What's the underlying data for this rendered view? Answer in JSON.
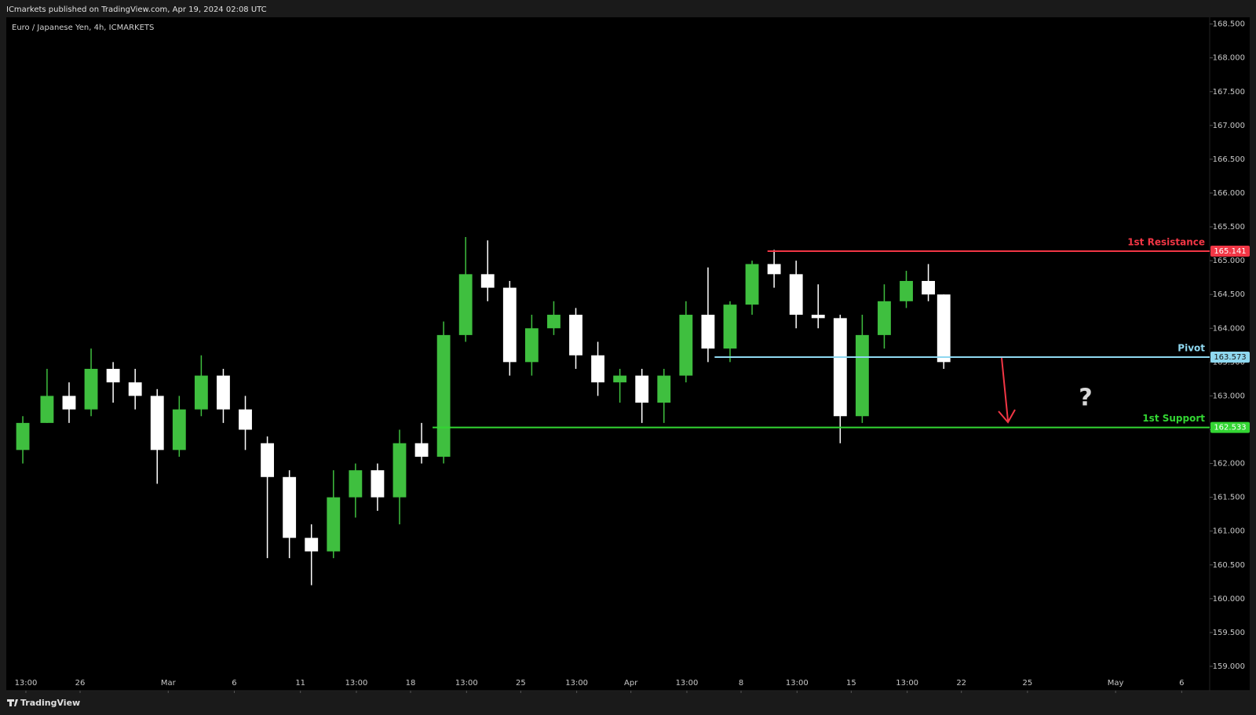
{
  "header": {
    "publisher": "ICmarkets published on TradingView.com, Apr 19, 2024 02:08 UTC",
    "symbol": "Euro / Japanese Yen, 4h, ICMARKETS",
    "footer": "TradingView"
  },
  "chart_data": {
    "type": "candlestick",
    "x": [
      -2.6,
      -1.5,
      -0.5,
      0.5,
      1.5,
      2.5,
      3.5,
      4.5,
      5.5,
      6.5,
      7.5,
      8.5,
      9.5,
      10.5,
      11.5,
      12.5,
      13.5,
      14.5,
      15.5,
      16.5,
      17.5,
      18.5,
      19.5,
      20.5,
      21.5,
      22.5,
      23.5,
      24.5,
      25.5,
      26.5,
      27.5,
      28.5,
      29.5,
      30.5,
      31.5,
      32.5,
      33.5,
      34.5,
      35.5,
      36.5,
      37.5,
      38.5,
      39.2
    ],
    "open": [
      162.2,
      162.6,
      163.0,
      162.8,
      163.4,
      163.2,
      163.0,
      162.2,
      162.8,
      163.3,
      162.8,
      162.3,
      161.8,
      160.9,
      160.7,
      161.5,
      161.9,
      161.5,
      162.3,
      162.1,
      163.9,
      164.8,
      164.6,
      163.5,
      164.0,
      164.2,
      163.6,
      163.2,
      163.3,
      162.9,
      163.3,
      164.2,
      163.7,
      164.35,
      164.95,
      164.8,
      164.2,
      164.15,
      162.7,
      163.9,
      164.4,
      164.7,
      164.5
    ],
    "high": [
      162.7,
      163.4,
      163.2,
      163.7,
      163.5,
      163.4,
      163.1,
      163.0,
      163.6,
      163.4,
      163.0,
      162.4,
      161.9,
      161.1,
      161.9,
      162.0,
      162.0,
      162.5,
      162.6,
      164.1,
      165.35,
      165.3,
      164.7,
      164.2,
      164.4,
      164.3,
      163.8,
      163.4,
      163.4,
      163.4,
      164.4,
      164.9,
      164.4,
      165.0,
      165.16,
      165.0,
      164.65,
      164.2,
      164.2,
      164.65,
      164.85,
      164.95,
      164.5
    ],
    "low": [
      162.0,
      162.6,
      162.6,
      162.7,
      162.9,
      162.8,
      161.7,
      162.1,
      162.7,
      162.6,
      162.2,
      160.6,
      160.6,
      160.2,
      160.6,
      161.2,
      161.3,
      161.1,
      162.0,
      162.0,
      163.8,
      164.4,
      163.3,
      163.3,
      163.9,
      163.4,
      163.0,
      162.9,
      162.6,
      162.6,
      163.2,
      163.5,
      163.5,
      164.2,
      164.6,
      164.0,
      164.0,
      162.3,
      162.6,
      163.7,
      164.3,
      164.4,
      163.4
    ],
    "close": [
      162.6,
      163.0,
      162.8,
      163.4,
      163.2,
      163.0,
      162.2,
      162.8,
      163.3,
      162.8,
      162.5,
      161.8,
      160.9,
      160.7,
      161.5,
      161.9,
      161.5,
      162.3,
      162.1,
      163.9,
      164.8,
      164.6,
      163.5,
      164.0,
      164.2,
      163.6,
      163.2,
      163.3,
      162.9,
      163.3,
      164.2,
      163.7,
      164.35,
      164.95,
      164.8,
      164.2,
      164.15,
      162.7,
      163.9,
      164.4,
      164.7,
      164.5,
      163.5
    ],
    "up_color": "#3fbf3f",
    "down_color": "#ffffff",
    "xlim": [
      -3.35,
      51.27
    ],
    "xticks": [
      {
        "value": -2.46,
        "label": "13:00"
      },
      {
        "value": 0,
        "label": "26"
      },
      {
        "value": 4,
        "label": "Mar"
      },
      {
        "value": 7,
        "label": "6"
      },
      {
        "value": 10,
        "label": "11"
      },
      {
        "value": 12.54,
        "label": "13:00"
      },
      {
        "value": 15,
        "label": "18"
      },
      {
        "value": 17.54,
        "label": "13:00"
      },
      {
        "value": 20,
        "label": "25"
      },
      {
        "value": 22.54,
        "label": "13:00"
      },
      {
        "value": 25,
        "label": "Apr"
      },
      {
        "value": 27.54,
        "label": "13:00"
      },
      {
        "value": 30,
        "label": "8"
      },
      {
        "value": 32.54,
        "label": "13:00"
      },
      {
        "value": 35,
        "label": "15"
      },
      {
        "value": 37.54,
        "label": "13:00"
      },
      {
        "value": 40,
        "label": "22"
      },
      {
        "value": 43,
        "label": "25"
      },
      {
        "value": 47,
        "label": "May"
      },
      {
        "value": 50,
        "label": "6"
      }
    ],
    "ylim": [
      158.64,
      168.6
    ],
    "yticks": [
      {
        "value": 159.0,
        "label": "159.000"
      },
      {
        "value": 159.5,
        "label": "159.500"
      },
      {
        "value": 160.0,
        "label": "160.000"
      },
      {
        "value": 160.5,
        "label": "160.500"
      },
      {
        "value": 161.0,
        "label": "161.000"
      },
      {
        "value": 161.5,
        "label": "161.500"
      },
      {
        "value": 162.0,
        "label": "162.000"
      },
      {
        "value": 162.5,
        "label": "162.500"
      },
      {
        "value": 163.0,
        "label": "163.000"
      },
      {
        "value": 163.5,
        "label": "163.500"
      },
      {
        "value": 164.0,
        "label": "164.000"
      },
      {
        "value": 164.5,
        "label": "164.500"
      },
      {
        "value": 165.0,
        "label": "165.000"
      },
      {
        "value": 165.5,
        "label": "165.500"
      },
      {
        "value": 166.0,
        "label": "166.000"
      },
      {
        "value": 166.5,
        "label": "166.500"
      },
      {
        "value": 167.0,
        "label": "167.000"
      },
      {
        "value": 167.5,
        "label": "167.500"
      },
      {
        "value": 168.0,
        "label": "168.000"
      },
      {
        "value": 168.5,
        "label": "168.500"
      }
    ],
    "grid": false,
    "levels": [
      {
        "name": "1st Resistance",
        "value": 165.141,
        "color": "#f23645",
        "x_start": 31.2
      },
      {
        "name": "Pivot",
        "value": 163.573,
        "color": "#8fd8f0",
        "x_start": 28.8
      },
      {
        "name": "1st Support",
        "value": 162.533,
        "color": "#33d633",
        "x_start": 16.0
      }
    ],
    "annotation": "?"
  }
}
